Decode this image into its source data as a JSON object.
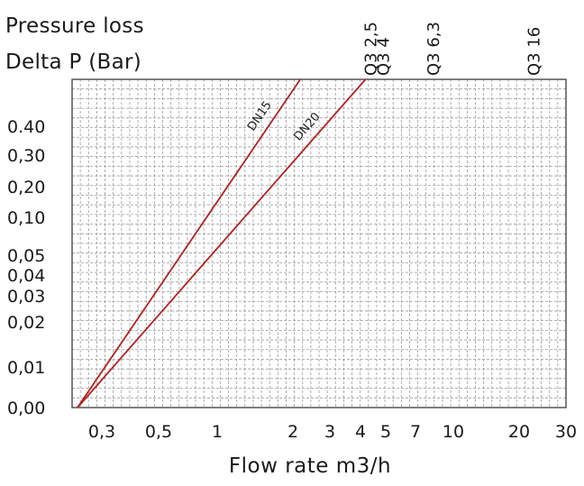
{
  "chart_data": {
    "type": "line",
    "title": "",
    "ylabel_line1": "Pressure loss",
    "ylabel_line2": "Delta P (Bar)",
    "xlabel": "Flow rate  m3/h",
    "x_scale": "log",
    "y_scale": "log",
    "xlim": [
      0.2,
      30
    ],
    "ylim": [
      0.0,
      0.6
    ],
    "x_ticks": [
      {
        "value": 0.3,
        "label": "0,3"
      },
      {
        "value": 0.5,
        "label": "0,5"
      },
      {
        "value": 1,
        "label": "1"
      },
      {
        "value": 2,
        "label": "2"
      },
      {
        "value": 3,
        "label": "3"
      },
      {
        "value": 4,
        "label": "4"
      },
      {
        "value": 5,
        "label": "5"
      },
      {
        "value": 7,
        "label": "7"
      },
      {
        "value": 10,
        "label": "10"
      },
      {
        "value": 20,
        "label": "20"
      },
      {
        "value": 30,
        "label": "30"
      }
    ],
    "y_ticks": [
      {
        "value": 0.0,
        "label": "0,00"
      },
      {
        "value": 0.01,
        "label": "0,01"
      },
      {
        "value": 0.02,
        "label": "0,02"
      },
      {
        "value": 0.03,
        "label": "0,03"
      },
      {
        "value": 0.04,
        "label": "0,04"
      },
      {
        "value": 0.05,
        "label": "0,05"
      },
      {
        "value": 0.1,
        "label": "0,10"
      },
      {
        "value": 0.2,
        "label": "0,20"
      },
      {
        "value": 0.3,
        "label": "0,30"
      },
      {
        "value": 0.4,
        "label": "0.40"
      }
    ],
    "top_labels": [
      {
        "value": 4.2,
        "label": "Q3 2,5"
      },
      {
        "value": 4.7,
        "label": "Q3 4"
      },
      {
        "value": 8.0,
        "label": "Q3 6,3"
      },
      {
        "value": 22.0,
        "label": "Q3 16"
      }
    ],
    "series": [
      {
        "name": "DN15",
        "color": "#b22222",
        "points": [
          {
            "x": 0.2,
            "y": 0.0
          },
          {
            "x": 2.2,
            "y": 0.6
          }
        ]
      },
      {
        "name": "DN20",
        "color": "#b22222",
        "points": [
          {
            "x": 0.2,
            "y": 0.0
          },
          {
            "x": 4.2,
            "y": 0.6
          }
        ]
      }
    ],
    "grid": true,
    "legend": "none"
  }
}
